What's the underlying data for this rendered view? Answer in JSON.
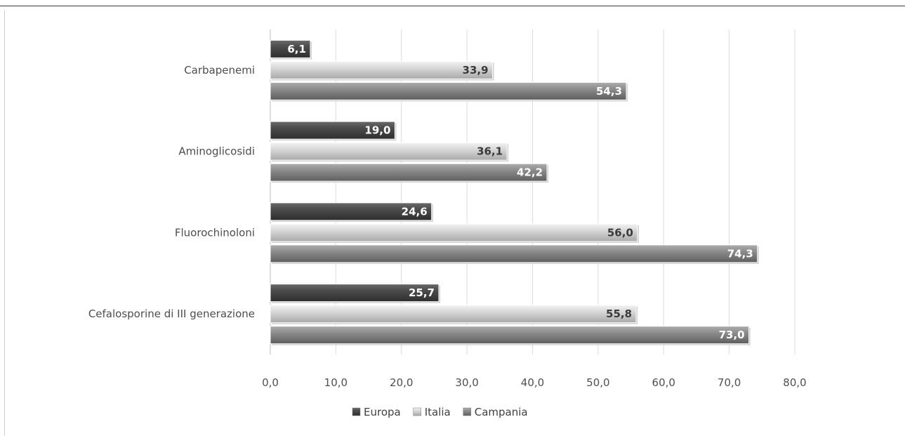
{
  "chart_data": {
    "type": "bar",
    "orientation": "horizontal",
    "categories": [
      "Carbapenemi",
      "Aminoglicosidi",
      "Fluorochinoloni",
      "Cefalosporine di III generazione"
    ],
    "series": [
      {
        "name": "Europa",
        "values": [
          6.1,
          19.0,
          24.6,
          25.7
        ],
        "labels": [
          "6,1",
          "19,0",
          "24,6",
          "25,7"
        ],
        "color": "#4a4a4a",
        "label_color": "#ffffff"
      },
      {
        "name": "Italia",
        "values": [
          33.9,
          36.1,
          56.0,
          55.8
        ],
        "labels": [
          "33,9",
          "36,1",
          "56,0",
          "55,8"
        ],
        "color": "#cfcfcf",
        "label_color": "#3a3a3a"
      },
      {
        "name": "Campania",
        "values": [
          54.3,
          42.2,
          74.3,
          73.0
        ],
        "labels": [
          "54,3",
          "42,2",
          "74,3",
          "73,0"
        ],
        "color": "#858585",
        "label_color": "#ffffff"
      }
    ],
    "xlim": [
      0,
      80
    ],
    "x_ticks": [
      "0,0",
      "10,0",
      "20,0",
      "30,0",
      "40,0",
      "50,0",
      "60,0",
      "70,0",
      "80,0"
    ],
    "grid": true,
    "legend": "bottom",
    "title": "",
    "xlabel": "",
    "ylabel": ""
  }
}
